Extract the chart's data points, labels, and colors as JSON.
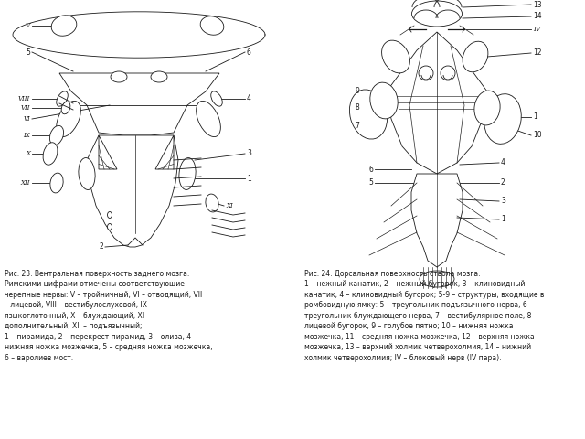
{
  "background_color": "#ffffff",
  "fig_width": 6.4,
  "fig_height": 4.8,
  "dpi": 100,
  "caption_left": "Рис. 23. Вентральная поверхность заднего мозга.\nРимскими цифрами отмечены соответствующие\nчерепные нервы: V – тройничный, VI – отводящий, VII\n– лицевой, VIII – вестибулослуховой, IX –\nязыкоглоточный, X – блуждающий, XI –\nдополнительный, XII – подъязычный;\n1 – пирамида, 2 – перекрест пирамид, 3 – олива, 4 –\nнижняя ножка мозжечка, 5 – средняя ножка мозжечка,\n6 – варолиев мост.",
  "caption_right": "Рис. 24. Дорсальная поверхность ствола мозга.\n1 – нежный канатик, 2 – нежный бугорок, 3 – клиновидный\nканатик, 4 – клиновидный бугорок; 5-9 – структуры, входящие в\nромбовидную ямку: 5 – треугольник подъязычного нерва, 6 –\nтреугольник блуждающего нерва, 7 – вестибулярное поле, 8 –\nлицевой бугорок, 9 – голубое пятно; 10 – нижняя ножка\nмозжечка, 11 – средняя ножка мозжечка, 12 – верхняя ножка\nмозжечка, 13 – верхний холмик четверохолмия, 14 – нижний\nхолмик четверохолмия; IV – блоковый нерв (IV пара).",
  "line_color": "#1a1a1a",
  "text_color": "#1a1a1a",
  "font_size_caption": 5.5,
  "font_size_label": 5.5
}
